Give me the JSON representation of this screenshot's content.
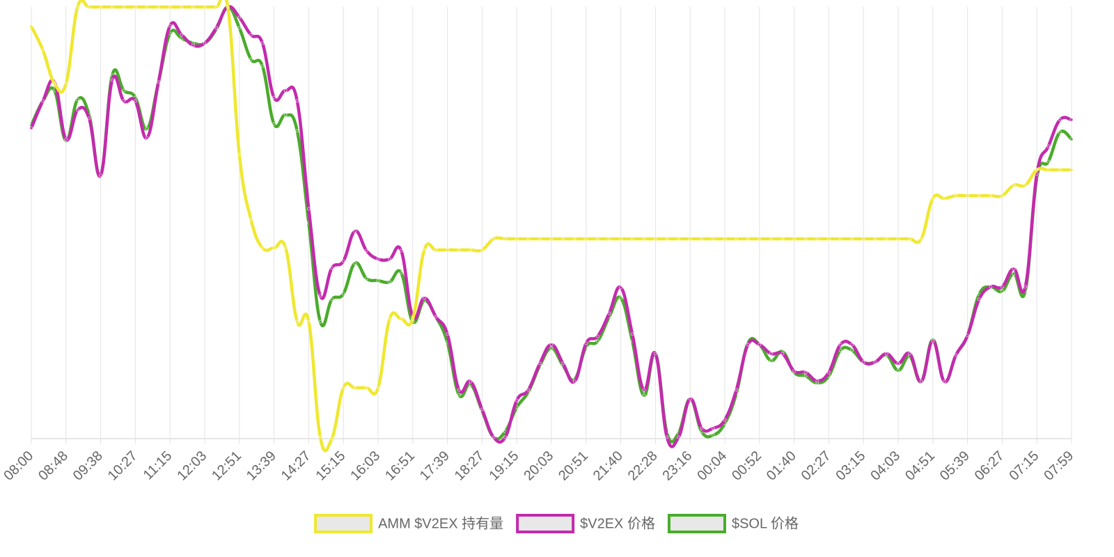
{
  "chart_data": {
    "type": "line",
    "categories": [
      "08:00",
      null,
      null,
      "08:48",
      null,
      null,
      "09:38",
      null,
      null,
      "10:27",
      null,
      null,
      "11:15",
      null,
      null,
      "12:03",
      null,
      null,
      "12:51",
      null,
      null,
      "13:39",
      null,
      null,
      "14:27",
      null,
      null,
      "15:15",
      null,
      null,
      "16:03",
      null,
      null,
      "16:51",
      null,
      null,
      "17:39",
      null,
      null,
      "18:27",
      null,
      null,
      "19:15",
      null,
      null,
      "20:03",
      null,
      null,
      "20:51",
      null,
      null,
      "21:40",
      null,
      null,
      "22:28",
      null,
      null,
      "23:16",
      null,
      null,
      "00:04",
      null,
      null,
      "00:52",
      null,
      null,
      "01:40",
      null,
      null,
      "02:27",
      null,
      null,
      "03:15",
      null,
      null,
      "04:03",
      null,
      null,
      "04:51",
      null,
      null,
      "05:39",
      null,
      null,
      "06:27",
      null,
      null,
      "07:15",
      null,
      null,
      "07:59"
    ],
    "series": [
      {
        "name": "AMM $V2EX 持有量",
        "color": "#efe82f",
        "values": [
          592,
          558,
          510,
          510,
          620,
          620,
          620,
          620,
          620,
          620,
          620,
          620,
          620,
          620,
          620,
          620,
          620,
          620,
          408,
          315,
          274,
          274,
          274,
          168,
          168,
          2,
          0,
          73,
          73,
          73,
          73,
          172,
          172,
          172,
          271,
          271,
          271,
          271,
          271,
          271,
          287,
          287,
          287,
          287,
          287,
          287,
          287,
          287,
          287,
          287,
          287,
          287,
          287,
          287,
          287,
          287,
          287,
          287,
          287,
          287,
          287,
          287,
          287,
          287,
          287,
          287,
          287,
          287,
          287,
          287,
          287,
          287,
          287,
          287,
          287,
          287,
          287,
          287,
          345,
          345,
          349,
          349,
          349,
          349,
          349,
          364,
          364,
          386,
          386,
          386,
          386
        ]
      },
      {
        "name": "$V2EX 价格",
        "color": "#c32aad",
        "values": [
          446,
          485,
          512,
          430,
          472,
          460,
          378,
          515,
          485,
          485,
          432,
          512,
          593,
          580,
          565,
          568,
          590,
          620,
          605,
          580,
          568,
          490,
          500,
          485,
          330,
          205,
          245,
          255,
          298,
          270,
          258,
          258,
          270,
          175,
          202,
          175,
          150,
          70,
          82,
          42,
          2,
          2,
          55,
          70,
          108,
          135,
          108,
          82,
          137,
          147,
          180,
          217,
          150,
          70,
          122,
          2,
          2,
          57,
          15,
          15,
          27,
          70,
          135,
          135,
          122,
          122,
          97,
          95,
          83,
          95,
          135,
          135,
          110,
          110,
          122,
          108,
          122,
          82,
          140,
          82,
          120,
          148,
          200,
          218,
          218,
          244,
          218,
          380,
          420,
          458,
          458
        ]
      },
      {
        "name": "$SOL 价格",
        "color": "#4aab2b",
        "values": [
          450,
          485,
          500,
          428,
          487,
          465,
          378,
          522,
          500,
          490,
          445,
          512,
          582,
          575,
          568,
          568,
          588,
          620,
          590,
          545,
          535,
          452,
          465,
          442,
          310,
          168,
          200,
          208,
          252,
          230,
          227,
          225,
          238,
          168,
          198,
          175,
          138,
          63,
          78,
          40,
          2,
          10,
          45,
          67,
          105,
          130,
          105,
          85,
          132,
          140,
          175,
          202,
          140,
          62,
          122,
          8,
          8,
          57,
          10,
          5,
          22,
          65,
          137,
          135,
          112,
          125,
          95,
          90,
          80,
          90,
          127,
          127,
          110,
          110,
          120,
          98,
          118,
          82,
          142,
          82,
          120,
          148,
          207,
          218,
          212,
          237,
          212,
          375,
          398,
          440,
          430
        ]
      }
    ],
    "ylim": [
      0,
      620
    ],
    "grid": true
  }
}
